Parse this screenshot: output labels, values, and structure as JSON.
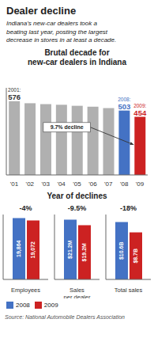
{
  "title": "Dealer decline",
  "subtitle": "Indiana's new-car dealers took a\nbeating last year, posting the largest\ndecrease in stores in at least a decade.",
  "source": "Source: National Automobile Dealers Association",
  "chart_data": [
    {
      "type": "bar",
      "title": "Brutal decade for\nnew-car dealers in Indiana",
      "categories": [
        "'01",
        "'02",
        "'03",
        "'04",
        "'05",
        "'06",
        "'07",
        "'08",
        "'09"
      ],
      "values": [
        576,
        560,
        553,
        548,
        540,
        533,
        522,
        503,
        454
      ],
      "colors": [
        "#b0b0b0",
        "#b0b0b0",
        "#b0b0b0",
        "#b0b0b0",
        "#b0b0b0",
        "#b0b0b0",
        "#b0b0b0",
        "#4472c4",
        "#cc2222"
      ],
      "ylim": [
        0,
        680
      ],
      "tick_labels": "x",
      "annotations": [
        {
          "category": "'01",
          "label": "2001:",
          "value": 576
        },
        {
          "category": "'08",
          "label": "2008:",
          "value": 503,
          "color": "#4472c4"
        },
        {
          "category": "'09",
          "label": "2009:",
          "value": 454,
          "color": "#cc2222"
        },
        {
          "text": "9.7% decline",
          "category": "'09"
        }
      ]
    },
    {
      "type": "bar",
      "title": "Year of declines",
      "categories": [
        "Employees",
        "Sales\nper dealer",
        "Total sales"
      ],
      "series": [
        {
          "name": "2008",
          "color": "#4472c4",
          "values": [
            19864,
            21.2,
            10.6
          ],
          "value_labels": [
            "19,864",
            "$21.2M",
            "$10.6B"
          ]
        },
        {
          "name": "2009",
          "color": "#cc2222",
          "values": [
            19072,
            19.2,
            8.7
          ],
          "value_labels": [
            "19,072",
            "$19.2M",
            "$8.7B"
          ]
        }
      ],
      "ylims": [
        [
          0,
          21000
        ],
        [
          0,
          23
        ],
        [
          0,
          12
        ]
      ],
      "annotations": [
        "-4%",
        "-9.5%",
        "-18%"
      ],
      "data_labels": true,
      "tick_labels": "x",
      "legend": "bottom left"
    }
  ]
}
